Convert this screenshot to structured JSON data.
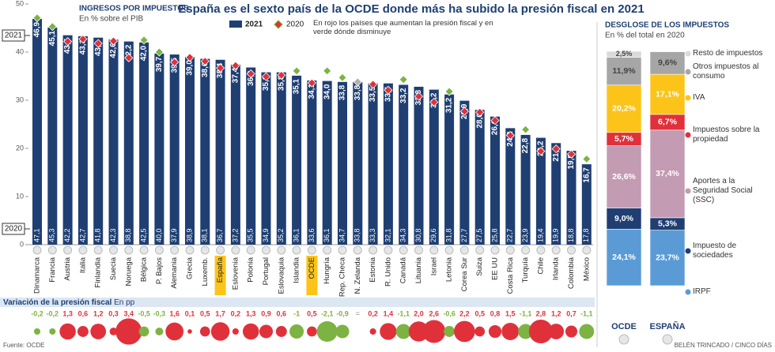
{
  "title": "España es el sexto país de la OCDE donde más ha subido la presión fiscal en 2021",
  "chart_data": [
    {
      "type": "bar",
      "heading": "INGRESOS POR IMPUESTOS",
      "subheading": "En % sobre el PIB",
      "legend_note": "En rojo los países que aumentan la presión fiscal y en verde dónde disminuye",
      "categories": [
        "Dinamarca",
        "Francia",
        "Austria",
        "Italia",
        "Finlandia",
        "Suecia",
        "Noruega",
        "Bélgica",
        "P. Bajos",
        "Alemania",
        "Grecia",
        "Luxemb.",
        "España",
        "Eslovenia",
        "Polonia",
        "Portugal",
        "Eslovaquia",
        "Islandia",
        "OCDE",
        "Hungría",
        "Rep. Checa",
        "N. Zelanda",
        "Estonia",
        "R. Unido",
        "Canadá",
        "Lituania",
        "Israel",
        "Letonia",
        "Corea Sur",
        "Suiza",
        "EE UU",
        "Costa Rica",
        "Turquía",
        "Chile",
        "Irlanda",
        "Colombia",
        "México"
      ],
      "highlight": [
        "España",
        "OCDE"
      ],
      "series": [
        {
          "name": "2021",
          "color": "#1f3f73",
          "values": [
            46.9,
            45.1,
            43.5,
            43.3,
            43.0,
            42.6,
            42.2,
            42.0,
            39.7,
            39.5,
            39.0,
            38.6,
            38.4,
            37.4,
            36.8,
            35.8,
            35.8,
            35.1,
            34.1,
            34.0,
            33.8,
            33.8,
            33.5,
            33.5,
            33.2,
            32.8,
            32.2,
            31.2,
            29.9,
            28.0,
            26.6,
            24.2,
            22.8,
            22.2,
            21.1,
            19.5,
            16.7
          ],
          "value_labels": [
            "46,9",
            "45,1",
            "43,5",
            "43,3",
            "43,0",
            "42,6",
            "42,2",
            "42,0",
            "39,7",
            "39,5",
            "39,0",
            "38,6",
            "38,4",
            "37,4",
            "36,8",
            "35,8",
            "35,8",
            "35,1",
            "34,1",
            "34,0",
            "33,8",
            "33,8",
            "33,5",
            "33,5",
            "33,2",
            "32,8",
            "32,2",
            "31,2",
            "29,9",
            "28,0",
            "26,6",
            "24,2",
            "22,8",
            "22,2",
            "21,1",
            "19,5",
            "16,7"
          ]
        },
        {
          "name": "2020",
          "marker": "diamond",
          "values": [
            47.1,
            45.3,
            42.2,
            42.7,
            41.8,
            42.3,
            38.8,
            42.5,
            40.0,
            37.9,
            38.9,
            38.1,
            36.7,
            37.2,
            35.5,
            34.9,
            35.2,
            36.1,
            33.6,
            36.1,
            34.7,
            33.8,
            33.3,
            32.1,
            34.3,
            30.8,
            29.6,
            31.8,
            27.7,
            27.5,
            25.8,
            22.7,
            23.9,
            19.4,
            19.9,
            18.8,
            17.8
          ],
          "value_labels": [
            "47,1",
            "45,3",
            "42,2",
            "42,7",
            "41,8",
            "42,3",
            "38,8",
            "42,5",
            "40,0",
            "37,9",
            "38,9",
            "38,1",
            "36,7",
            "37,2",
            "35,5",
            "34,9",
            "35,2",
            "36,1",
            "33,6",
            "36,1",
            "34,7",
            "33,8",
            "33,3",
            "32,1",
            "34,3",
            "30,8",
            "29,6",
            "31,8",
            "27,7",
            "27,5",
            "25,8",
            "22,7",
            "23,9",
            "19,4",
            "19,9",
            "18,8",
            "17,8"
          ]
        }
      ],
      "variation": {
        "title": "Variación de la presión fiscal",
        "unit": "En pp",
        "values": [
          -0.2,
          -0.2,
          1.3,
          0.6,
          1.2,
          0.3,
          3.4,
          -0.5,
          -0.3,
          1.6,
          0.1,
          0.5,
          1.7,
          0.2,
          1.3,
          0.9,
          0.6,
          -1,
          0.5,
          -2.1,
          -0.9,
          0,
          0.2,
          1.4,
          -1.1,
          2.0,
          2.6,
          -0.6,
          2.2,
          0.5,
          0.8,
          1.5,
          -1.1,
          2.8,
          1.2,
          0.7,
          -1.1
        ],
        "value_labels": [
          "-0,2",
          "-0,2",
          "1,3",
          "0,6",
          "1,2",
          "0,3",
          "3,4",
          "-0,5",
          "-0,3",
          "1,6",
          "0,1",
          "0,5",
          "1,7",
          "0,2",
          "1,3",
          "0,9",
          "0,6",
          "-1",
          "0,5",
          "-2,1",
          "-0,9",
          "=",
          "0,2",
          "1,4",
          "-1,1",
          "2,0",
          "2,6",
          "-0,6",
          "2,2",
          "0,5",
          "0,8",
          "1,5",
          "-1,1",
          "2,8",
          "1,2",
          "0,7",
          "-1,1"
        ]
      },
      "colors": {
        "increase": "#e0313b",
        "decrease": "#7cb342",
        "equal": "#b0b0b0"
      },
      "ylim": [
        0,
        50
      ],
      "yticks": [
        0,
        10,
        20,
        30,
        40,
        50
      ],
      "source": "Fuente: OCDE"
    },
    {
      "type": "stacked_bar",
      "heading": "DESGLOSE DE LOS IMPUESTOS",
      "subheading": "En % del total en 2020",
      "categories": [
        "OCDE",
        "ESPAÑA"
      ],
      "ylim": [
        0,
        100
      ],
      "series": [
        {
          "name": "IRPF",
          "color": "#5b9bd5",
          "values": [
            24.1,
            23.7
          ],
          "value_labels": [
            "24,1%",
            "23,7%"
          ]
        },
        {
          "name": "Impuesto de sociedades",
          "color": "#1f3f73",
          "values": [
            9.0,
            5.3
          ],
          "value_labels": [
            "9,0%",
            "5,3%"
          ]
        },
        {
          "name": "Aportes a la Seguridad Social (SSC)",
          "color": "#c39bb3",
          "values": [
            26.6,
            37.4
          ],
          "value_labels": [
            "26,6%",
            "37,4%"
          ]
        },
        {
          "name": "Impuestos sobre la propiedad",
          "color": "#e0313b",
          "values": [
            5.7,
            6.7
          ],
          "value_labels": [
            "5,7%",
            "6,7%"
          ]
        },
        {
          "name": "IVA",
          "color": "#fcc419",
          "values": [
            20.2,
            17.1
          ],
          "value_labels": [
            "20,2%",
            "17,1%"
          ]
        },
        {
          "name": "Otros impuestos al consumo",
          "color": "#a6a6a6",
          "values": [
            11.9,
            9.6
          ],
          "value_labels": [
            "11,9%",
            "9,6%"
          ]
        },
        {
          "name": "Resto de impuestos",
          "color": "#d9d9d9",
          "values": [
            2.5,
            null
          ],
          "value_labels": [
            "2,5%",
            null
          ]
        }
      ],
      "credit": "BELÉN TRINCADO / CINCO DÍAS"
    }
  ]
}
